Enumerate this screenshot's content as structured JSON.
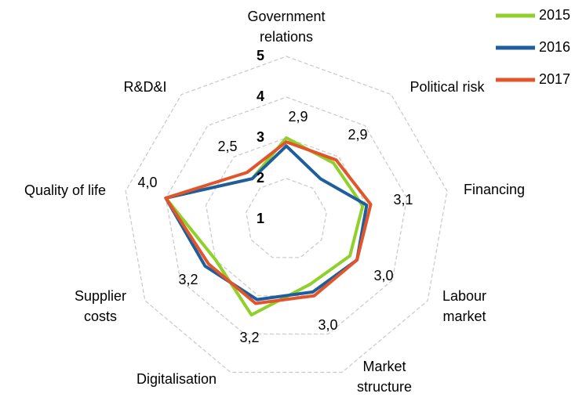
{
  "chart_data": {
    "type": "radar",
    "categories": [
      "Government relations",
      "Political risk",
      "Financing",
      "Labour market",
      "Market structure",
      "Digitalisation",
      "Supplier costs",
      "Quality of life",
      "R&D&I"
    ],
    "rlim": [
      1,
      5
    ],
    "rticks": [
      1,
      2,
      3,
      4,
      5
    ],
    "series": [
      {
        "name": "2015",
        "color": "#8fd02b",
        "values": [
          3.0,
          2.8,
          2.9,
          2.8,
          2.7,
          3.5,
          3.0,
          4.0,
          2.3
        ]
      },
      {
        "name": "2016",
        "color": "#1f5e9c",
        "values": [
          2.8,
          2.3,
          3.0,
          3.0,
          2.9,
          3.1,
          3.3,
          4.0,
          2.3
        ]
      },
      {
        "name": "2017",
        "color": "#e2552b",
        "values": [
          2.9,
          2.9,
          3.1,
          3.0,
          3.0,
          3.2,
          3.2,
          4.0,
          2.5
        ],
        "value_labels": [
          "2,9",
          "2,9",
          "3,1",
          "3,0",
          "3,0",
          "3,2",
          "3,2",
          "4,0",
          "2,5"
        ]
      }
    ]
  }
}
